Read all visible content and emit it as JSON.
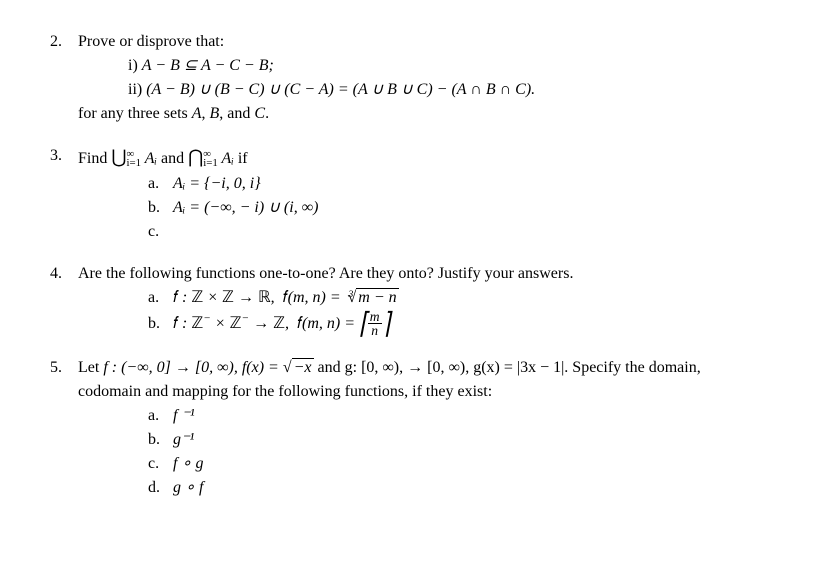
{
  "p2": {
    "num": "2.",
    "lead": "Prove or disprove that:",
    "i_label": "i) ",
    "i_math": "A − B ⊆ A − C − B;",
    "ii_label": "ii) ",
    "ii_math": "(A − B) ∪ (B − C) ∪ (C − A) = (A ∪ B ∪ C) − (A ∩ B ∩ C).",
    "tail": "for any three sets A, B, and C."
  },
  "p3": {
    "num": "3.",
    "lead_a": "Find ",
    "union_sym": "⋃",
    "inter_sym": "⋂",
    "sup": "∞",
    "sub": "i=1",
    "ai": " Aᵢ",
    "and": " and ",
    "tail": " if",
    "a_label": "a.",
    "a_math": "Aᵢ = {−i, 0, i}",
    "b_label": "b.",
    "b_math": "Aᵢ = (−∞, − i) ∪ (i, ∞)",
    "c_label": "c."
  },
  "p4": {
    "num": "4.",
    "lead": "Are the following functions one-to-one? Are they onto? Justify your answers.",
    "a_label": "a.",
    "a_pre": "f : ℤ × ℤ → ℝ,  f(m, n) = ",
    "a_rootidx": "3",
    "a_radicand": "m − n",
    "b_label": "b.",
    "b_pre": "f : ℤ⁻ × ℤ⁻ → ℤ,  f(m, n) = ",
    "b_frac_top": "m",
    "b_frac_bot": "n"
  },
  "p5": {
    "num": "5.",
    "lead_a": "Let ",
    "lead_b": "f : (−∞, 0] → [0, ∞), f(x) = ",
    "rad": "−x",
    "lead_c": " and g: [0, ∞), → [0, ∞), g(x) = |3x − 1|. Specify the domain,",
    "line2": "codomain and mapping for the following functions, if they exist:",
    "a_label": "a.",
    "a_math": "f ⁻¹",
    "b_label": "b.",
    "b_math": "g⁻¹",
    "c_label": "c.",
    "c_math": "f ∘ g",
    "d_label": "d.",
    "d_math": "g ∘ f"
  }
}
